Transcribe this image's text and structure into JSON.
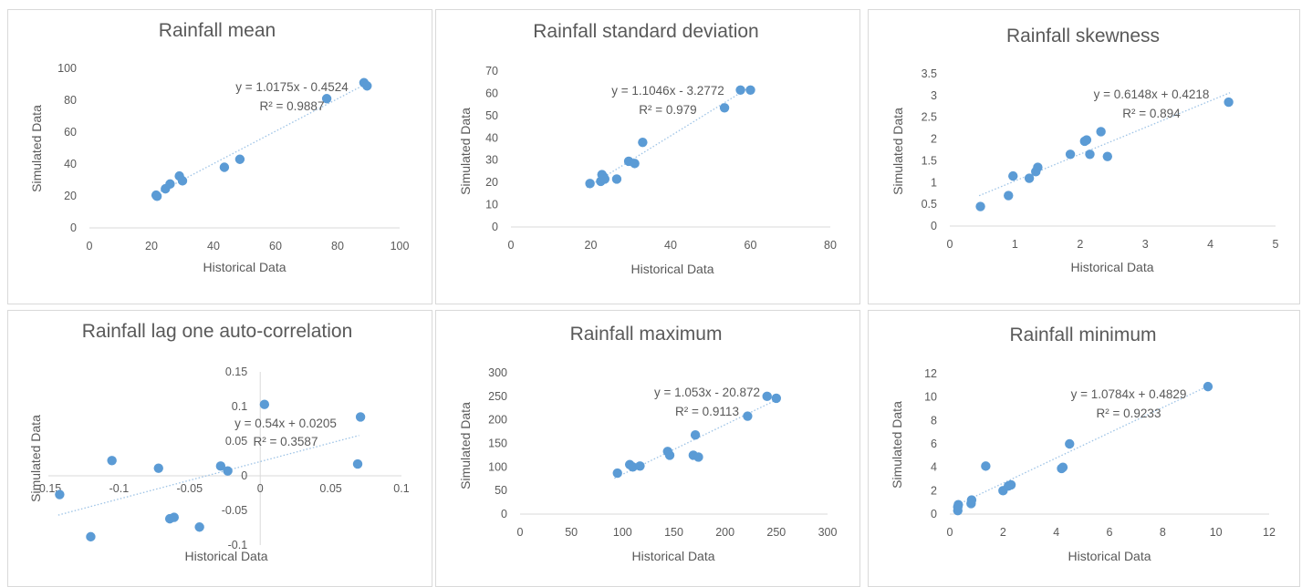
{
  "colors": {
    "point": "#5b9bd5",
    "trend": "#9dc3e6",
    "axis": "#d9d9d9",
    "text": "#595959"
  },
  "chart_data": [
    {
      "type": "scatter",
      "title": "Rainfall mean",
      "xlabel": "Historical Data",
      "ylabel": "Simulated Data",
      "xlim": [
        0,
        100
      ],
      "ylim": [
        0,
        100
      ],
      "xticks": [
        "0",
        "20",
        "40",
        "60",
        "80",
        "100"
      ],
      "yticks": [
        "0",
        "20",
        "40",
        "60",
        "80",
        "100"
      ],
      "equation": "y = 1.0175x - 0.4524",
      "r2": "R² = 0.9887",
      "trendline": {
        "slope": 1.0175,
        "intercept": -0.4524,
        "x_range": [
          21,
          90
        ]
      },
      "points": [
        [
          21.5,
          20.5
        ],
        [
          21.8,
          19.8
        ],
        [
          24.5,
          24.5
        ],
        [
          26,
          27.5
        ],
        [
          29,
          32.5
        ],
        [
          30,
          29.5
        ],
        [
          43.5,
          38
        ],
        [
          48.5,
          43
        ],
        [
          76.5,
          81
        ],
        [
          88.5,
          91
        ],
        [
          89.5,
          89
        ]
      ],
      "grid": false
    },
    {
      "type": "scatter",
      "title": "Rainfall standard deviation",
      "xlabel": "Historical Data",
      "ylabel": "Simulated Data",
      "xlim": [
        0,
        80
      ],
      "ylim": [
        0,
        70
      ],
      "xticks": [
        "0",
        "20",
        "40",
        "60",
        "80"
      ],
      "yticks": [
        "0",
        "10",
        "20",
        "30",
        "40",
        "50",
        "60",
        "70"
      ],
      "equation": "y = 1.1046x - 3.2772",
      "r2": "R² = 0.979",
      "trendline": {
        "slope": 1.1046,
        "intercept": -3.2772,
        "x_range": [
          19,
          60
        ]
      },
      "points": [
        [
          19.8,
          19.5
        ],
        [
          22.5,
          20.5
        ],
        [
          22.8,
          23.5
        ],
        [
          23.2,
          22.5
        ],
        [
          23.5,
          21.5
        ],
        [
          26.5,
          21.5
        ],
        [
          29.5,
          29.5
        ],
        [
          31,
          28.5
        ],
        [
          33,
          38
        ],
        [
          53.5,
          53.5
        ],
        [
          57.5,
          61.5
        ],
        [
          60,
          61.5
        ]
      ],
      "grid": false
    },
    {
      "type": "scatter",
      "title": "Rainfall skewness",
      "xlabel": "Historical Data",
      "ylabel": "Simulated Data",
      "xlim": [
        0,
        5
      ],
      "ylim": [
        0,
        3.5
      ],
      "xticks": [
        "0",
        "1",
        "2",
        "3",
        "4",
        "5"
      ],
      "yticks": [
        "0",
        "0.5",
        "1",
        "1.5",
        "2",
        "2.5",
        "3",
        "3.5"
      ],
      "equation": "y = 0.6148x + 0.4218",
      "r2": "R² = 0.894",
      "trendline": {
        "slope": 0.6148,
        "intercept": 0.4218,
        "x_range": [
          0.45,
          4.3
        ]
      },
      "points": [
        [
          0.47,
          0.45
        ],
        [
          0.9,
          0.7
        ],
        [
          0.97,
          1.15
        ],
        [
          1.22,
          1.1
        ],
        [
          1.32,
          1.25
        ],
        [
          1.35,
          1.35
        ],
        [
          1.85,
          1.65
        ],
        [
          2.07,
          1.95
        ],
        [
          2.1,
          1.98
        ],
        [
          2.15,
          1.65
        ],
        [
          2.32,
          2.17
        ],
        [
          2.42,
          1.6
        ],
        [
          4.28,
          2.85
        ]
      ],
      "grid": false
    },
    {
      "type": "scatter",
      "title": "Rainfall lag one auto-correlation",
      "xlabel": "Historical Data",
      "ylabel": "Simulated Data",
      "xlim": [
        -0.15,
        0.1
      ],
      "ylim": [
        -0.1,
        0.15
      ],
      "xticks": [
        "-0.15",
        "-0.1",
        "-0.05",
        "0",
        "0.05",
        "0.1"
      ],
      "yticks": [
        "-0.1",
        "-0.05",
        "0",
        "0.05",
        "0.1",
        "0.15"
      ],
      "equation": "y = 0.54x + 0.0205",
      "r2": "R² = 0.3587",
      "trendline": {
        "slope": 0.54,
        "intercept": 0.0205,
        "x_range": [
          -0.143,
          0.07
        ]
      },
      "points": [
        [
          -0.142,
          -0.027
        ],
        [
          -0.12,
          -0.088
        ],
        [
          -0.105,
          0.022
        ],
        [
          -0.072,
          0.011
        ],
        [
          -0.064,
          -0.062
        ],
        [
          -0.061,
          -0.06
        ],
        [
          -0.043,
          -0.074
        ],
        [
          -0.028,
          0.014
        ],
        [
          -0.023,
          0.007
        ],
        [
          0.003,
          0.103
        ],
        [
          0.069,
          0.017
        ],
        [
          0.071,
          0.085
        ]
      ],
      "grid": false
    },
    {
      "type": "scatter",
      "title": "Rainfall maximum",
      "xlabel": "Historical Data",
      "ylabel": "Simulated Data",
      "xlim": [
        0,
        300
      ],
      "ylim": [
        0,
        300
      ],
      "xticks": [
        "0",
        "50",
        "100",
        "150",
        "200",
        "250",
        "300"
      ],
      "yticks": [
        "0",
        "50",
        "100",
        "150",
        "200",
        "250",
        "300"
      ],
      "equation": "y = 1.053x - 20.872",
      "r2": "R² = 0.9113",
      "trendline": {
        "slope": 1.053,
        "intercept": -20.872,
        "x_range": [
          92,
          252
        ]
      },
      "points": [
        [
          95,
          87
        ],
        [
          107,
          105
        ],
        [
          110,
          100
        ],
        [
          117,
          102
        ],
        [
          144,
          133
        ],
        [
          146,
          125
        ],
        [
          169,
          125
        ],
        [
          171,
          168
        ],
        [
          174,
          121
        ],
        [
          222,
          208
        ],
        [
          241,
          250
        ],
        [
          250,
          246
        ]
      ],
      "grid": false
    },
    {
      "type": "scatter",
      "title": "Rainfall minimum",
      "xlabel": "Historical Data",
      "ylabel": "Simulated Data",
      "xlim": [
        0,
        12
      ],
      "ylim": [
        0,
        12
      ],
      "xticks": [
        "0",
        "2",
        "4",
        "6",
        "8",
        "10",
        "12"
      ],
      "yticks": [
        "0",
        "2",
        "4",
        "6",
        "8",
        "10",
        "12"
      ],
      "equation": "y = 1.0784x + 0.4829",
      "r2": "R² = 0.9233",
      "trendline": {
        "slope": 1.0784,
        "intercept": 0.4829,
        "x_range": [
          0.3,
          9.8
        ]
      },
      "points": [
        [
          0.3,
          0.3
        ],
        [
          0.3,
          0.6
        ],
        [
          0.32,
          0.8
        ],
        [
          0.8,
          0.9
        ],
        [
          0.82,
          1.2
        ],
        [
          1.35,
          4.1
        ],
        [
          2.0,
          2.0
        ],
        [
          2.2,
          2.4
        ],
        [
          2.3,
          2.5
        ],
        [
          4.2,
          3.9
        ],
        [
          4.25,
          4.0
        ],
        [
          4.5,
          6.0
        ],
        [
          9.7,
          10.9
        ]
      ],
      "grid": false
    }
  ]
}
